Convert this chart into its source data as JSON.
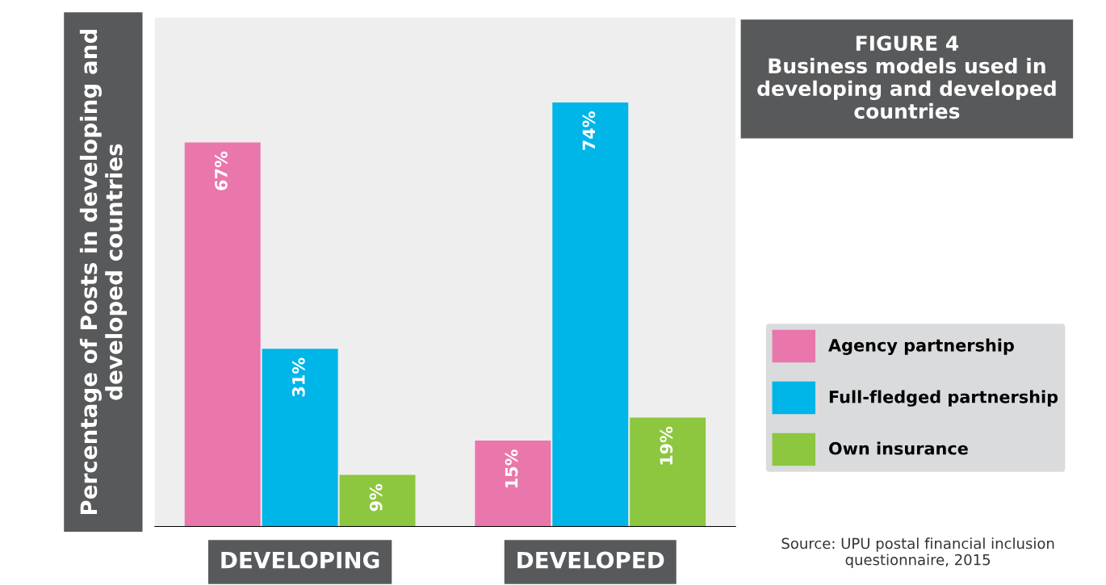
{
  "chart_data": {
    "type": "bar",
    "title": "FIGURE 4\nBusiness models used in developing and developed countries",
    "ylabel": "Percentage of Posts in developing and developed countries",
    "categories": [
      "DEVELOPING",
      "DEVELOPED"
    ],
    "series": [
      {
        "name": "Agency partnership",
        "color": "#e977ab",
        "values": [
          67,
          15
        ],
        "value_labels": [
          "67%",
          "15%"
        ]
      },
      {
        "name": "Full-fledged partnership",
        "color": "#00b5e8",
        "values": [
          31,
          74
        ],
        "value_labels": [
          "31%",
          "74%"
        ]
      },
      {
        "name": "Own insurance",
        "color": "#8dc63f",
        "values": [
          9,
          19
        ],
        "value_labels": [
          "9%",
          "19%"
        ]
      }
    ],
    "legend": "right",
    "grid": false,
    "annotations": [
      "Source: UPU postal financial inclusion questionnaire, 2015"
    ]
  }
}
